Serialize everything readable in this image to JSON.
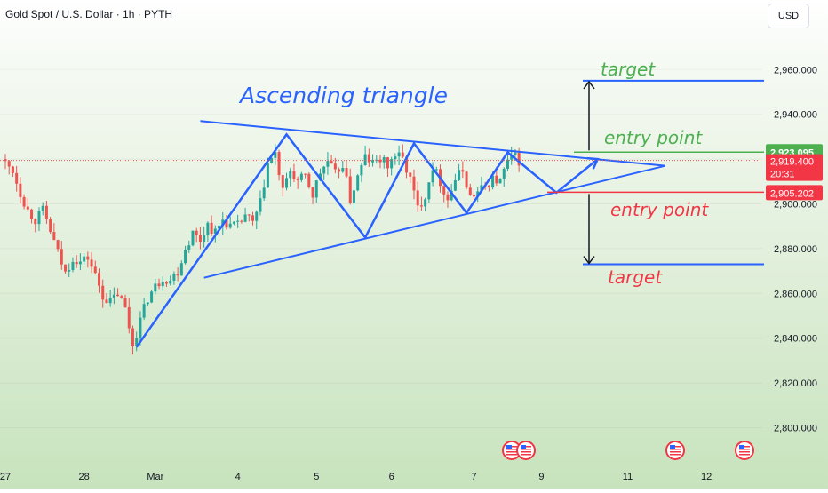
{
  "header": {
    "symbol_title": "Gold Spot / U.S. Dollar · 1h · PYTH",
    "currency_label": "USD"
  },
  "chart_data": {
    "type": "candlestick",
    "title": "Ascending triangle",
    "ylim": [
      2792,
      2972
    ],
    "y_ticks": [
      2800,
      2820,
      2840,
      2860,
      2880,
      2900,
      2920,
      2940,
      2960
    ],
    "y_tick_labels": [
      "2,800.000",
      "2,820.000",
      "2,840.000",
      "2,860.000",
      "2,880.000",
      "2,900.000",
      "2,920.000",
      "2,940.000",
      "2,960.000"
    ],
    "x_ticks": [
      {
        "label": "27",
        "i": 0
      },
      {
        "label": "28",
        "i": 21
      },
      {
        "label": "Mar",
        "i": 40
      },
      {
        "label": "4",
        "i": 62
      },
      {
        "label": "5",
        "i": 83
      },
      {
        "label": "6",
        "i": 103
      },
      {
        "label": "7",
        "i": 125
      },
      {
        "label": "9",
        "i": 143
      },
      {
        "label": "11",
        "i": 166
      },
      {
        "label": "12",
        "i": 187
      }
    ],
    "current_price": 2919.4,
    "countdown": "20:31",
    "price_labels": [
      {
        "value": 2923.095,
        "text": "2,923.095",
        "color": "#4caf50"
      },
      {
        "value": 2919.4,
        "text": "2,919.400",
        "color": "#f23645"
      },
      {
        "value": 2905.202,
        "text": "2,905.202",
        "color": "#f23645"
      }
    ],
    "colors": {
      "up": "#26a69a",
      "down": "#ef5350",
      "pattern": "#2962ff",
      "green": "#4caf50",
      "red": "#f23645"
    },
    "candle_close_path": [
      {
        "i": 0,
        "v": 2918
      },
      {
        "i": 2,
        "v": 2915
      },
      {
        "i": 4,
        "v": 2905
      },
      {
        "i": 6,
        "v": 2897
      },
      {
        "i": 8,
        "v": 2893
      },
      {
        "i": 10,
        "v": 2897
      },
      {
        "i": 12,
        "v": 2888
      },
      {
        "i": 14,
        "v": 2878
      },
      {
        "i": 16,
        "v": 2869
      },
      {
        "i": 18,
        "v": 2876
      },
      {
        "i": 20,
        "v": 2874
      },
      {
        "i": 22,
        "v": 2876
      },
      {
        "i": 24,
        "v": 2868
      },
      {
        "i": 26,
        "v": 2859
      },
      {
        "i": 28,
        "v": 2856
      },
      {
        "i": 30,
        "v": 2860
      },
      {
        "i": 32,
        "v": 2853
      },
      {
        "i": 34,
        "v": 2837
      },
      {
        "i": 36,
        "v": 2848
      },
      {
        "i": 38,
        "v": 2858
      },
      {
        "i": 40,
        "v": 2863
      },
      {
        "i": 42,
        "v": 2867
      },
      {
        "i": 44,
        "v": 2866
      },
      {
        "i": 46,
        "v": 2870
      },
      {
        "i": 48,
        "v": 2880
      },
      {
        "i": 50,
        "v": 2887
      },
      {
        "i": 52,
        "v": 2884
      },
      {
        "i": 54,
        "v": 2891
      },
      {
        "i": 56,
        "v": 2887
      },
      {
        "i": 58,
        "v": 2893
      },
      {
        "i": 60,
        "v": 2890
      },
      {
        "i": 62,
        "v": 2890
      },
      {
        "i": 64,
        "v": 2895
      },
      {
        "i": 66,
        "v": 2891
      },
      {
        "i": 68,
        "v": 2900
      },
      {
        "i": 70,
        "v": 2918
      },
      {
        "i": 72,
        "v": 2922
      },
      {
        "i": 74,
        "v": 2905
      },
      {
        "i": 76,
        "v": 2915
      },
      {
        "i": 78,
        "v": 2910
      },
      {
        "i": 80,
        "v": 2912
      },
      {
        "i": 82,
        "v": 2904
      },
      {
        "i": 84,
        "v": 2914
      },
      {
        "i": 86,
        "v": 2919
      },
      {
        "i": 88,
        "v": 2913
      },
      {
        "i": 90,
        "v": 2918
      },
      {
        "i": 92,
        "v": 2902
      },
      {
        "i": 94,
        "v": 2912
      },
      {
        "i": 96,
        "v": 2921
      },
      {
        "i": 98,
        "v": 2918
      },
      {
        "i": 100,
        "v": 2920
      },
      {
        "i": 102,
        "v": 2917
      },
      {
        "i": 104,
        "v": 2922
      },
      {
        "i": 106,
        "v": 2920
      },
      {
        "i": 108,
        "v": 2911
      },
      {
        "i": 110,
        "v": 2898
      },
      {
        "i": 112,
        "v": 2904
      },
      {
        "i": 114,
        "v": 2917
      },
      {
        "i": 116,
        "v": 2910
      },
      {
        "i": 118,
        "v": 2902
      },
      {
        "i": 120,
        "v": 2911
      },
      {
        "i": 122,
        "v": 2915
      },
      {
        "i": 124,
        "v": 2903
      },
      {
        "i": 126,
        "v": 2905
      },
      {
        "i": 128,
        "v": 2908
      },
      {
        "i": 130,
        "v": 2911
      },
      {
        "i": 132,
        "v": 2910
      },
      {
        "i": 134,
        "v": 2919
      },
      {
        "i": 136,
        "v": 2921
      },
      {
        "i": 137,
        "v": 2919.4
      }
    ],
    "annotations": {
      "pattern_title": "Ascending triangle",
      "target_up_label": "target",
      "entry_up_label": "entry point",
      "entry_down_label": "entry point",
      "target_down_label": "target",
      "target_up_value": 2955,
      "entry_up_value": 2923.095,
      "entry_down_value": 2905.202,
      "target_down_value": 2873,
      "upper_trendline": [
        {
          "i": 52,
          "v": 2937
        },
        {
          "i": 176,
          "v": 2917
        }
      ],
      "lower_trendline": [
        {
          "i": 53,
          "v": 2867
        },
        {
          "i": 176,
          "v": 2917
        }
      ],
      "zigzag": [
        {
          "i": 35,
          "v": 2836
        },
        {
          "i": 75,
          "v": 2931
        },
        {
          "i": 96,
          "v": 2885
        },
        {
          "i": 109,
          "v": 2927
        },
        {
          "i": 123,
          "v": 2896
        },
        {
          "i": 134,
          "v": 2923
        },
        {
          "i": 147,
          "v": 2905
        },
        {
          "i": 158,
          "v": 2920
        }
      ],
      "events_count": 4
    }
  }
}
